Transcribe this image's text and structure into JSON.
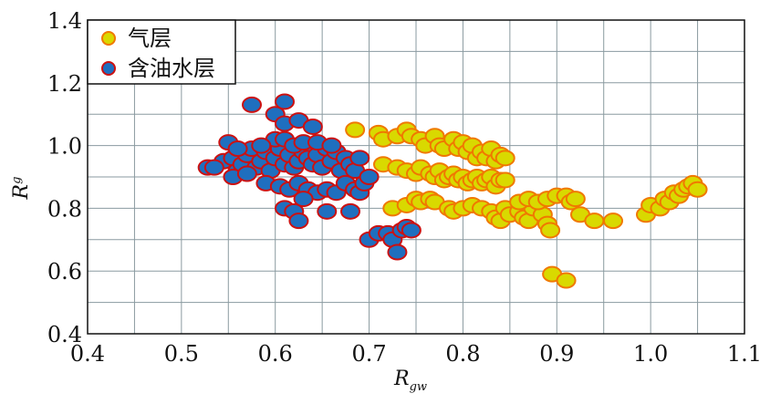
{
  "chart_data": {
    "type": "scatter",
    "xlabel": {
      "main": "R",
      "sub": "gw"
    },
    "ylabel": {
      "main": "R",
      "sub": "g"
    },
    "xlim": [
      0.4,
      1.1
    ],
    "ylim": [
      0.4,
      1.4
    ],
    "x_ticks": [
      0.4,
      0.5,
      0.6,
      0.7,
      0.8,
      0.9,
      1.0,
      1.1
    ],
    "x_tick_labels": [
      "0.4",
      "0.5",
      "0.6",
      "0.7",
      "0.8",
      "0.9",
      "1.0",
      "1.1"
    ],
    "y_ticks": [
      0.4,
      0.6,
      0.8,
      1.0,
      1.2,
      1.4
    ],
    "y_tick_labels": [
      "0.4",
      "0.6",
      "0.8",
      "1.0",
      "1.2",
      "1.4"
    ],
    "grid": true,
    "legend_position": "top-left",
    "series": [
      {
        "name": "气层",
        "fill": "#d9d900",
        "edge": "#f07800",
        "points": [
          [
            0.685,
            1.05
          ],
          [
            0.71,
            1.04
          ],
          [
            0.715,
            1.02
          ],
          [
            0.73,
            1.03
          ],
          [
            0.74,
            1.05
          ],
          [
            0.745,
            1.03
          ],
          [
            0.755,
            1.02
          ],
          [
            0.76,
            1.0
          ],
          [
            0.77,
            1.03
          ],
          [
            0.775,
            1.0
          ],
          [
            0.78,
            0.99
          ],
          [
            0.79,
            1.02
          ],
          [
            0.795,
            0.99
          ],
          [
            0.8,
            1.01
          ],
          [
            0.805,
            0.98
          ],
          [
            0.81,
            1.0
          ],
          [
            0.815,
            0.96
          ],
          [
            0.82,
            0.98
          ],
          [
            0.825,
            0.96
          ],
          [
            0.83,
            0.99
          ],
          [
            0.835,
            0.95
          ],
          [
            0.84,
            0.97
          ],
          [
            0.845,
            0.96
          ],
          [
            0.715,
            0.94
          ],
          [
            0.73,
            0.93
          ],
          [
            0.74,
            0.92
          ],
          [
            0.75,
            0.91
          ],
          [
            0.755,
            0.93
          ],
          [
            0.765,
            0.91
          ],
          [
            0.77,
            0.9
          ],
          [
            0.775,
            0.92
          ],
          [
            0.78,
            0.89
          ],
          [
            0.785,
            0.9
          ],
          [
            0.79,
            0.91
          ],
          [
            0.795,
            0.89
          ],
          [
            0.8,
            0.9
          ],
          [
            0.805,
            0.88
          ],
          [
            0.81,
            0.89
          ],
          [
            0.815,
            0.9
          ],
          [
            0.82,
            0.88
          ],
          [
            0.825,
            0.89
          ],
          [
            0.83,
            0.9
          ],
          [
            0.835,
            0.87
          ],
          [
            0.84,
            0.89
          ],
          [
            0.845,
            0.89
          ],
          [
            0.725,
            0.8
          ],
          [
            0.74,
            0.81
          ],
          [
            0.75,
            0.83
          ],
          [
            0.755,
            0.82
          ],
          [
            0.765,
            0.83
          ],
          [
            0.77,
            0.82
          ],
          [
            0.785,
            0.8
          ],
          [
            0.79,
            0.79
          ],
          [
            0.8,
            0.8
          ],
          [
            0.81,
            0.81
          ],
          [
            0.82,
            0.8
          ],
          [
            0.83,
            0.79
          ],
          [
            0.835,
            0.77
          ],
          [
            0.84,
            0.76
          ],
          [
            0.845,
            0.8
          ],
          [
            0.85,
            0.78
          ],
          [
            0.86,
            0.79
          ],
          [
            0.865,
            0.77
          ],
          [
            0.87,
            0.76
          ],
          [
            0.875,
            0.8
          ],
          [
            0.885,
            0.78
          ],
          [
            0.89,
            0.75
          ],
          [
            0.893,
            0.73
          ],
          [
            0.86,
            0.82
          ],
          [
            0.87,
            0.83
          ],
          [
            0.88,
            0.82
          ],
          [
            0.89,
            0.83
          ],
          [
            0.9,
            0.84
          ],
          [
            0.91,
            0.84
          ],
          [
            0.915,
            0.82
          ],
          [
            0.92,
            0.83
          ],
          [
            0.925,
            0.78
          ],
          [
            0.94,
            0.76
          ],
          [
            0.96,
            0.76
          ],
          [
            0.995,
            0.78
          ],
          [
            1.0,
            0.81
          ],
          [
            1.01,
            0.8
          ],
          [
            1.015,
            0.83
          ],
          [
            1.02,
            0.82
          ],
          [
            1.025,
            0.85
          ],
          [
            1.03,
            0.84
          ],
          [
            1.035,
            0.86
          ],
          [
            1.04,
            0.87
          ],
          [
            1.045,
            0.88
          ],
          [
            1.05,
            0.86
          ],
          [
            0.895,
            0.59
          ],
          [
            0.91,
            0.57
          ]
        ]
      },
      {
        "name": "含油水层",
        "fill": "#1f6fbf",
        "edge": "#cc1111",
        "points": [
          [
            0.528,
            0.93
          ],
          [
            0.545,
            0.95
          ],
          [
            0.55,
            1.01
          ],
          [
            0.555,
            0.96
          ],
          [
            0.56,
            0.92
          ],
          [
            0.565,
            0.94
          ],
          [
            0.57,
            0.97
          ],
          [
            0.575,
            0.99
          ],
          [
            0.58,
            0.93
          ],
          [
            0.585,
            0.95
          ],
          [
            0.59,
            0.98
          ],
          [
            0.595,
            0.92
          ],
          [
            0.6,
            0.96
          ],
          [
            0.605,
            0.99
          ],
          [
            0.61,
            0.94
          ],
          [
            0.615,
            0.97
          ],
          [
            0.62,
            0.93
          ],
          [
            0.625,
            0.95
          ],
          [
            0.63,
            0.98
          ],
          [
            0.635,
            0.96
          ],
          [
            0.64,
            0.94
          ],
          [
            0.645,
            0.97
          ],
          [
            0.65,
            0.93
          ],
          [
            0.655,
            0.99
          ],
          [
            0.66,
            0.95
          ],
          [
            0.665,
            0.98
          ],
          [
            0.67,
            0.92
          ],
          [
            0.675,
            0.96
          ],
          [
            0.68,
            0.94
          ],
          [
            0.685,
            0.92
          ],
          [
            0.69,
            0.96
          ],
          [
            0.575,
            1.13
          ],
          [
            0.6,
            1.1
          ],
          [
            0.61,
            1.14
          ],
          [
            0.61,
            1.07
          ],
          [
            0.625,
            1.08
          ],
          [
            0.64,
            1.06
          ],
          [
            0.6,
            1.02
          ],
          [
            0.61,
            1.02
          ],
          [
            0.62,
            1.0
          ],
          [
            0.63,
            1.01
          ],
          [
            0.645,
            1.01
          ],
          [
            0.56,
            0.99
          ],
          [
            0.585,
            1.0
          ],
          [
            0.59,
            0.88
          ],
          [
            0.605,
            0.87
          ],
          [
            0.615,
            0.86
          ],
          [
            0.625,
            0.88
          ],
          [
            0.635,
            0.86
          ],
          [
            0.645,
            0.85
          ],
          [
            0.655,
            0.86
          ],
          [
            0.665,
            0.85
          ],
          [
            0.675,
            0.88
          ],
          [
            0.685,
            0.86
          ],
          [
            0.69,
            0.85
          ],
          [
            0.695,
            0.88
          ],
          [
            0.7,
            0.9
          ],
          [
            0.61,
            0.8
          ],
          [
            0.62,
            0.79
          ],
          [
            0.625,
            0.76
          ],
          [
            0.63,
            0.83
          ],
          [
            0.655,
            0.79
          ],
          [
            0.68,
            0.79
          ],
          [
            0.7,
            0.7
          ],
          [
            0.71,
            0.72
          ],
          [
            0.72,
            0.72
          ],
          [
            0.725,
            0.7
          ],
          [
            0.73,
            0.66
          ],
          [
            0.735,
            0.73
          ],
          [
            0.74,
            0.74
          ],
          [
            0.745,
            0.73
          ],
          [
            0.66,
            1.0
          ],
          [
            0.555,
            0.9
          ],
          [
            0.57,
            0.91
          ],
          [
            0.535,
            0.93
          ]
        ]
      }
    ]
  }
}
